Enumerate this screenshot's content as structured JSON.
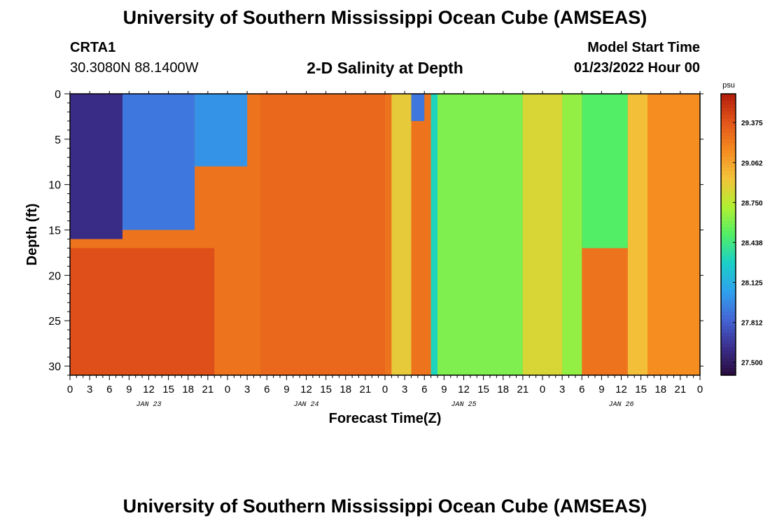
{
  "header": {
    "title": "University of Southern Mississippi Ocean Cube (AMSEAS)",
    "station": "CRTA1",
    "coords": "30.3080N  88.1400W",
    "subtitle": "2-D Salinity at Depth",
    "model_start_label": "Model Start Time",
    "model_start_value": "01/23/2022 Hour 00"
  },
  "footer": {
    "title": "University of Southern Mississippi Ocean Cube (AMSEAS)"
  },
  "colors": {
    "colormap": [
      "#2a0b3c",
      "#3b2f8f",
      "#4467d6",
      "#2fa3ee",
      "#1bd0c6",
      "#52ee66",
      "#b2f032",
      "#f3c23a",
      "#f58a1f",
      "#e2541a",
      "#b21d0b"
    ]
  },
  "chart_data": {
    "type": "heatmap",
    "title": "2-D Salinity at Depth",
    "xlabel": "Forecast Time(Z)",
    "ylabel": "Depth (ft)",
    "x_ticks": [
      "0",
      "3",
      "6",
      "9",
      "12",
      "15",
      "18",
      "21",
      "0",
      "3",
      "6",
      "9",
      "12",
      "15",
      "18",
      "21",
      "0",
      "3",
      "6",
      "9",
      "12",
      "15",
      "18",
      "21",
      "0",
      "3",
      "6",
      "9",
      "12",
      "15",
      "18",
      "21",
      "0"
    ],
    "x_range_hours": [
      0,
      96
    ],
    "day_labels": [
      {
        "label": "JAN 23",
        "hour": 12
      },
      {
        "label": "JAN 24",
        "hour": 36
      },
      {
        "label": "JAN 25",
        "hour": 60
      },
      {
        "label": "JAN 26",
        "hour": 84
      }
    ],
    "y_ticks": [
      0,
      5,
      10,
      15,
      20,
      25,
      30
    ],
    "ylim": [
      0,
      31
    ],
    "colorbar": {
      "unit": "psu",
      "ticks": [
        "29.375",
        "29.062",
        "28.750",
        "28.438",
        "28.125",
        "27.812",
        "27.500"
      ],
      "range": [
        27.4,
        29.6
      ]
    },
    "salinity_regions": [
      {
        "hours": [
          0,
          8
        ],
        "depth_ft": [
          0,
          16
        ],
        "psu": 27.6,
        "note": "fresh surface layer (darkest near surface)"
      },
      {
        "hours": [
          8,
          19
        ],
        "depth_ft": [
          0,
          15
        ],
        "psu": 27.9
      },
      {
        "hours": [
          19,
          27
        ],
        "depth_ft": [
          0,
          8
        ],
        "psu": 28.0
      },
      {
        "hours": [
          0,
          22
        ],
        "depth_ft": [
          17,
          31
        ],
        "psu": 29.4
      },
      {
        "hours": [
          29,
          48
        ],
        "depth_ft": [
          0,
          31
        ],
        "psu": 29.3
      },
      {
        "hours": [
          49,
          52
        ],
        "depth_ft": [
          0,
          31
        ],
        "psu": 28.9
      },
      {
        "hours": [
          52,
          54
        ],
        "depth_ft": [
          0,
          3
        ],
        "psu": 27.9
      },
      {
        "hours": [
          55,
          56
        ],
        "depth_ft": [
          0,
          31
        ],
        "psu": 28.3
      },
      {
        "hours": [
          56,
          69
        ],
        "depth_ft": [
          0,
          31
        ],
        "psu": 28.6
      },
      {
        "hours": [
          69,
          75
        ],
        "depth_ft": [
          0,
          31
        ],
        "psu": 28.85
      },
      {
        "hours": [
          75,
          78
        ],
        "depth_ft": [
          0,
          31
        ],
        "psu": 28.65
      },
      {
        "hours": [
          78,
          85
        ],
        "depth_ft": [
          0,
          17
        ],
        "psu": 28.5
      },
      {
        "hours": [
          85,
          88
        ],
        "depth_ft": [
          0,
          31
        ],
        "psu": 28.95
      },
      {
        "hours": [
          88,
          96
        ],
        "depth_ft": [
          0,
          31
        ],
        "psu": 29.15
      }
    ]
  }
}
